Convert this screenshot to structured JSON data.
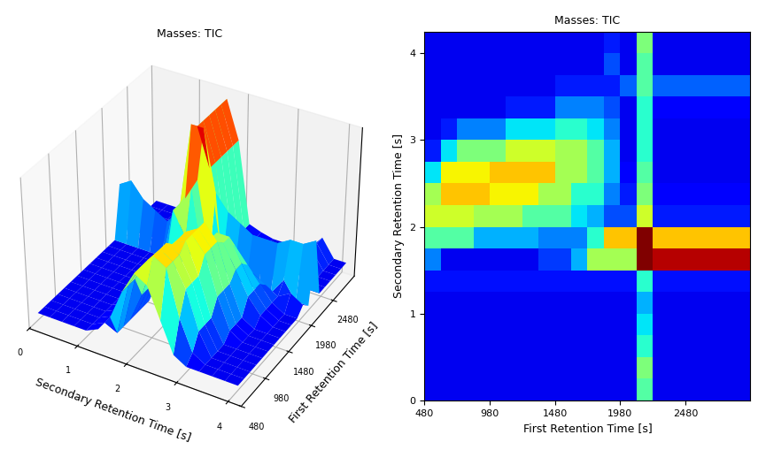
{
  "chart_data": [
    {
      "type": "surface3d",
      "title": "Masses: TIC",
      "x_label": "First Retention Time [s]",
      "y_label": "Secondary Retention Time [s]",
      "xlim": [
        480,
        2980
      ],
      "xticks": [
        480,
        980,
        1480,
        1980,
        2480
      ],
      "ylim": [
        0,
        4.25
      ],
      "yticks": [
        0,
        1,
        2,
        3,
        4
      ]
    },
    {
      "type": "heatmap",
      "title": "Masses: TIC",
      "x_label": "First Retention Time [s]",
      "y_label": "Secondary Retention Time [s]",
      "xlim": [
        480,
        2980
      ],
      "xticks": [
        480,
        980,
        1480,
        1980,
        2480
      ],
      "ylim": [
        0,
        4.25
      ],
      "yticks": [
        0,
        1,
        2,
        3,
        4
      ]
    }
  ],
  "grid": {
    "value_range": [
      0,
      100
    ],
    "x_edges": [
      480,
      605,
      730,
      855,
      980,
      1105,
      1230,
      1355,
      1480,
      1605,
      1730,
      1855,
      1980,
      2105,
      2230,
      2355,
      2480,
      2605,
      2730,
      2855,
      2980
    ],
    "y_edges": [
      0,
      0.25,
      0.5,
      0.75,
      1.0,
      1.25,
      1.5,
      1.75,
      2.0,
      2.25,
      2.5,
      2.75,
      3.0,
      3.25,
      3.5,
      3.75,
      4.0,
      4.25
    ],
    "cells": [
      [
        10,
        10,
        10,
        10,
        10,
        10,
        10,
        10,
        10,
        10,
        10,
        10,
        10,
        45,
        10,
        10,
        10,
        10,
        10,
        10
      ],
      [
        10,
        10,
        10,
        10,
        10,
        10,
        10,
        10,
        10,
        10,
        10,
        10,
        10,
        50,
        10,
        10,
        10,
        10,
        10,
        10
      ],
      [
        10,
        10,
        10,
        10,
        10,
        10,
        10,
        10,
        10,
        10,
        10,
        10,
        10,
        40,
        10,
        10,
        10,
        10,
        10,
        10
      ],
      [
        10,
        10,
        10,
        10,
        10,
        10,
        10,
        10,
        10,
        10,
        10,
        10,
        10,
        35,
        10,
        10,
        10,
        10,
        10,
        10
      ],
      [
        10,
        10,
        10,
        10,
        10,
        10,
        10,
        10,
        10,
        10,
        10,
        10,
        10,
        30,
        10,
        10,
        10,
        10,
        10,
        10
      ],
      [
        14,
        14,
        14,
        14,
        14,
        14,
        14,
        14,
        14,
        14,
        14,
        14,
        14,
        40,
        14,
        14,
        14,
        14,
        14,
        14
      ],
      [
        25,
        10,
        10,
        10,
        10,
        10,
        10,
        18,
        18,
        30,
        55,
        55,
        55,
        100,
        95,
        95,
        95,
        95,
        95,
        95
      ],
      [
        45,
        45,
        45,
        30,
        30,
        30,
        30,
        25,
        25,
        25,
        40,
        70,
        70,
        100,
        70,
        70,
        70,
        70,
        70,
        70
      ],
      [
        60,
        60,
        60,
        55,
        55,
        55,
        45,
        45,
        45,
        35,
        30,
        20,
        20,
        60,
        15,
        15,
        15,
        15,
        15,
        15
      ],
      [
        55,
        70,
        70,
        70,
        65,
        65,
        65,
        55,
        55,
        40,
        40,
        25,
        15,
        50,
        12,
        12,
        12,
        12,
        12,
        12
      ],
      [
        35,
        65,
        65,
        65,
        70,
        70,
        70,
        70,
        55,
        55,
        45,
        30,
        12,
        45,
        10,
        10,
        10,
        10,
        10,
        10
      ],
      [
        15,
        35,
        50,
        50,
        50,
        60,
        60,
        60,
        55,
        55,
        45,
        30,
        10,
        40,
        10,
        10,
        10,
        10,
        10,
        10
      ],
      [
        10,
        15,
        25,
        25,
        25,
        35,
        35,
        35,
        40,
        40,
        35,
        25,
        10,
        40,
        10,
        10,
        10,
        10,
        10,
        10
      ],
      [
        10,
        10,
        10,
        10,
        10,
        15,
        15,
        15,
        25,
        25,
        25,
        20,
        10,
        40,
        12,
        12,
        12,
        12,
        12,
        12
      ],
      [
        10,
        10,
        10,
        10,
        10,
        10,
        10,
        10,
        15,
        15,
        15,
        15,
        22,
        45,
        22,
        22,
        22,
        22,
        22,
        22
      ],
      [
        10,
        10,
        10,
        10,
        10,
        10,
        10,
        10,
        10,
        10,
        10,
        20,
        10,
        45,
        10,
        10,
        10,
        10,
        10,
        10
      ],
      [
        10,
        10,
        10,
        10,
        10,
        10,
        10,
        10,
        10,
        10,
        10,
        15,
        10,
        50,
        10,
        10,
        10,
        10,
        10,
        10
      ]
    ]
  }
}
